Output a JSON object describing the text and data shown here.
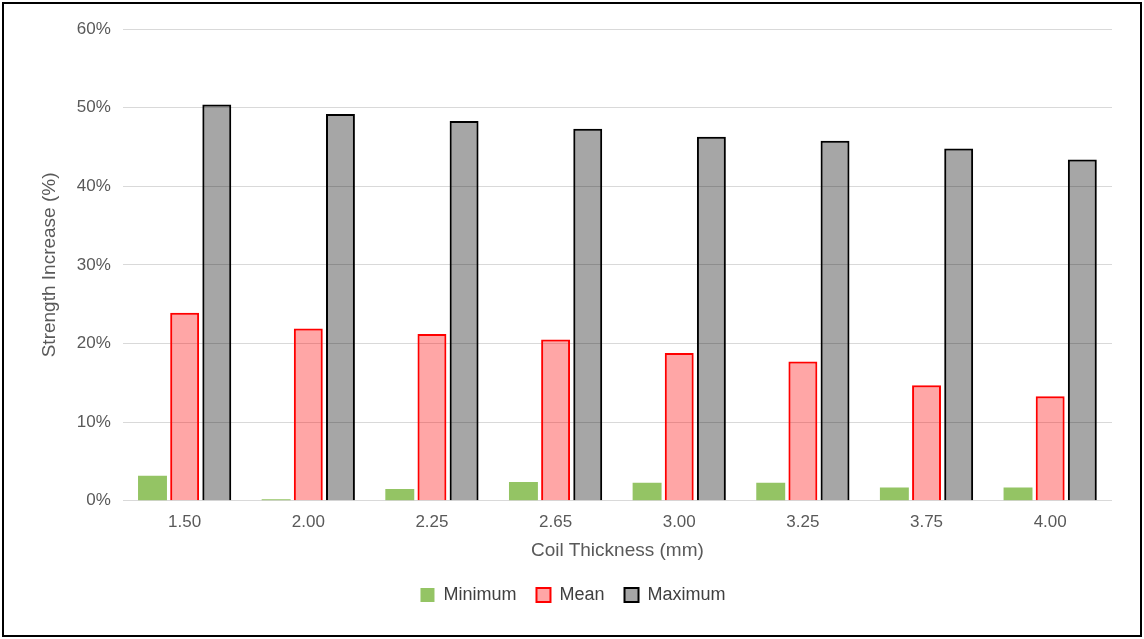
{
  "chart_data": {
    "type": "bar",
    "xlabel": "Coil Thickness (mm)",
    "ylabel": "Strength Increase (%)",
    "categories": [
      "1.50",
      "2.00",
      "2.25",
      "2.65",
      "3.00",
      "3.25",
      "3.75",
      "4.00"
    ],
    "series": [
      {
        "name": "Minimum",
        "color": "#70b030",
        "values": [
          3.2,
          0.2,
          1.5,
          2.4,
          2.3,
          2.3,
          1.7,
          1.7
        ]
      },
      {
        "name": "Mean",
        "color": "#ff0000",
        "values": [
          23.9,
          21.9,
          21.2,
          20.5,
          18.8,
          17.7,
          14.7,
          13.3
        ]
      },
      {
        "name": "Maximum",
        "color": "#000000",
        "values": [
          50.4,
          49.2,
          48.3,
          47.3,
          46.3,
          45.8,
          44.8,
          43.4
        ]
      }
    ],
    "ylim": [
      0,
      60
    ],
    "yticks": [
      {
        "value": 0,
        "label": "0%"
      },
      {
        "value": 10,
        "label": "10%"
      },
      {
        "value": 20,
        "label": "20%"
      },
      {
        "value": 30,
        "label": "30%"
      },
      {
        "value": 40,
        "label": "40%"
      },
      {
        "value": 50,
        "label": "50%"
      },
      {
        "value": 60,
        "label": "60%"
      }
    ],
    "grid": "y",
    "legend": "bottom"
  }
}
